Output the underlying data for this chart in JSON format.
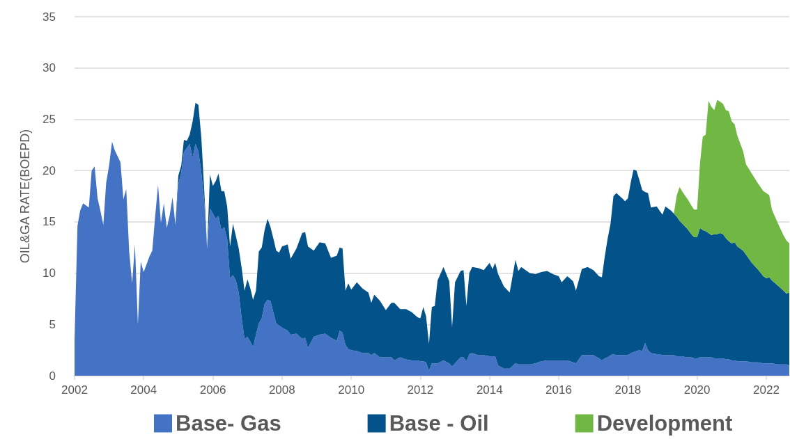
{
  "chart_data": {
    "type": "area",
    "stacked": true,
    "ylabel": "OIL&GA RATE(BOEPD)",
    "x": [
      "2002-01",
      "2002-02",
      "2002-03",
      "2002-04",
      "2002-06",
      "2002-07",
      "2002-08",
      "2002-09",
      "2002-10",
      "2002-11",
      "2002-12",
      "2003-01",
      "2003-02",
      "2003-03",
      "2003-05",
      "2003-06",
      "2003-07",
      "2003-08",
      "2003-09",
      "2003-10",
      "2003-11",
      "2003-12",
      "2004-01",
      "2004-03",
      "2004-04",
      "2004-05",
      "2004-06",
      "2004-07",
      "2004-08",
      "2004-09",
      "2004-10",
      "2004-11",
      "2004-12",
      "2005-01",
      "2005-02",
      "2005-03",
      "2005-04",
      "2005-05",
      "2005-06",
      "2005-07",
      "2005-08",
      "2005-09",
      "2005-10",
      "2005-11",
      "2005-12",
      "2006-01",
      "2006-02",
      "2006-03",
      "2006-04",
      "2006-05",
      "2006-06",
      "2006-07",
      "2006-08",
      "2006-09",
      "2006-10",
      "2006-11",
      "2006-12",
      "2007-01",
      "2007-02",
      "2007-03",
      "2007-04",
      "2007-05",
      "2007-06",
      "2007-07",
      "2007-08",
      "2007-09",
      "2007-10",
      "2007-11",
      "2007-12",
      "2008-01",
      "2008-03",
      "2008-04",
      "2008-06",
      "2008-08",
      "2008-09",
      "2008-10",
      "2008-12",
      "2009-02",
      "2009-04",
      "2009-06",
      "2009-08",
      "2009-09",
      "2009-10",
      "2009-11",
      "2009-12",
      "2010-01",
      "2010-03",
      "2010-05",
      "2010-07",
      "2010-08",
      "2010-09",
      "2010-11",
      "2011-01",
      "2011-03",
      "2011-04",
      "2011-06",
      "2011-08",
      "2011-10",
      "2011-12",
      "2012-01",
      "2012-02",
      "2012-03",
      "2012-04",
      "2012-05",
      "2012-06",
      "2012-07",
      "2012-09",
      "2012-11",
      "2012-12",
      "2013-01",
      "2013-03",
      "2013-04",
      "2013-05",
      "2013-06",
      "2013-07",
      "2013-09",
      "2013-11",
      "2014-01",
      "2014-02",
      "2014-03",
      "2014-04",
      "2014-06",
      "2014-08",
      "2014-10",
      "2014-11",
      "2014-12",
      "2015-03",
      "2015-05",
      "2015-07",
      "2015-09",
      "2015-11",
      "2016-01",
      "2016-02",
      "2016-04",
      "2016-06",
      "2016-07",
      "2016-09",
      "2016-11",
      "2017-01",
      "2017-03",
      "2017-04",
      "2017-05",
      "2017-06",
      "2017-07",
      "2017-08",
      "2017-09",
      "2017-11",
      "2017-12",
      "2018-01",
      "2018-02",
      "2018-03",
      "2018-04",
      "2018-05",
      "2018-06",
      "2018-07",
      "2018-08",
      "2018-09",
      "2018-11",
      "2018-12",
      "2019-01",
      "2019-02",
      "2019-04",
      "2019-05",
      "2019-06",
      "2019-07",
      "2019-08",
      "2019-09",
      "2019-10",
      "2019-11",
      "2019-12",
      "2020-01",
      "2020-02",
      "2020-03",
      "2020-04",
      "2020-05",
      "2020-06",
      "2020-07",
      "2020-08",
      "2020-09",
      "2020-10",
      "2020-11",
      "2020-12",
      "2021-01",
      "2021-02",
      "2021-03",
      "2021-05",
      "2021-06",
      "2021-08",
      "2021-10",
      "2021-12",
      "2022-01",
      "2022-02",
      "2022-03",
      "2022-05",
      "2022-07",
      "2022-08",
      "2022-09"
    ],
    "series": [
      {
        "name": "Base- Gas",
        "color": "#4472c4",
        "values": [
          3.5,
          14.6,
          16.1,
          16.8,
          16.4,
          20.0,
          20.4,
          17.3,
          16.1,
          14.7,
          18.8,
          20.5,
          22.8,
          22.0,
          20.8,
          17.2,
          18.2,
          12.1,
          9.0,
          12.8,
          5.0,
          11.1,
          10.1,
          11.6,
          12.2,
          15.5,
          18.6,
          14.9,
          16.8,
          14.4,
          15.6,
          17.4,
          14.7,
          18.7,
          19.8,
          21.8,
          22.2,
          22.6,
          21.3,
          22.6,
          21.9,
          19.8,
          17.1,
          12.4,
          16.3,
          15.8,
          15.3,
          15.6,
          14.2,
          14.5,
          13.3,
          9.5,
          9.8,
          9.3,
          8.1,
          5.6,
          3.6,
          3.8,
          3.3,
          2.8,
          4.0,
          5.1,
          5.6,
          7.0,
          7.4,
          7.3,
          6.2,
          5.1,
          4.9,
          4.7,
          4.4,
          4.0,
          4.1,
          3.6,
          3.7,
          2.7,
          3.8,
          4.0,
          4.1,
          3.7,
          3.4,
          4.4,
          4.2,
          3.0,
          2.6,
          2.5,
          2.4,
          2.2,
          2.2,
          2.0,
          2.2,
          1.8,
          1.8,
          1.8,
          1.5,
          1.8,
          1.6,
          1.5,
          1.5,
          1.4,
          1.4,
          1.3,
          0.5,
          1.2,
          1.2,
          1.2,
          1.5,
          1.2,
          0.9,
          1.2,
          1.8,
          1.8,
          1.4,
          2.1,
          2.2,
          2.0,
          2.0,
          1.9,
          1.9,
          1.9,
          1.0,
          0.7,
          0.7,
          1.2,
          1.1,
          1.1,
          1.1,
          1.2,
          1.4,
          1.5,
          1.5,
          1.5,
          1.5,
          1.5,
          1.3,
          1.2,
          2.0,
          2.0,
          2.0,
          1.7,
          1.5,
          1.7,
          1.8,
          2.0,
          2.1,
          2.0,
          2.0,
          2.0,
          2.0,
          2.2,
          2.3,
          2.4,
          2.5,
          2.4,
          3.2,
          2.5,
          2.2,
          2.1,
          2.1,
          2.0,
          2.0,
          2.0,
          2.0,
          1.9,
          1.9,
          1.9,
          1.8,
          1.8,
          1.8,
          1.7,
          1.7,
          1.8,
          1.8,
          1.8,
          1.8,
          1.8,
          1.7,
          1.7,
          1.7,
          1.7,
          1.6,
          1.6,
          1.5,
          1.5,
          1.4,
          1.4,
          1.4,
          1.3,
          1.3,
          1.2,
          1.2,
          1.2,
          1.2,
          1.1,
          1.1,
          1.1,
          1.0
        ]
      },
      {
        "name": "Base - Oil",
        "color": "#03528a",
        "values": [
          0,
          0,
          0,
          0,
          0,
          0,
          0,
          0,
          0,
          0,
          0,
          0,
          0,
          0,
          0,
          0,
          0,
          0,
          0,
          0,
          0,
          0,
          0,
          0,
          0,
          0,
          0,
          0,
          0,
          0,
          0,
          0,
          0,
          0.8,
          0.7,
          1.2,
          0.7,
          0.9,
          3.5,
          4.0,
          4.5,
          3.4,
          1.1,
          0,
          3.3,
          2.7,
          3.7,
          4.1,
          3.8,
          3.5,
          3.2,
          3.1,
          5.0,
          4.3,
          4.3,
          4.9,
          4.7,
          5.6,
          5.2,
          4.6,
          4.3,
          7.0,
          6.9,
          7.2,
          7.9,
          7.2,
          7.2,
          7.1,
          7.1,
          7.9,
          8.4,
          7.4,
          8.3,
          10.3,
          10.3,
          9.9,
          8.4,
          9.0,
          8.8,
          7.8,
          8.3,
          8.1,
          8.2,
          5.3,
          6.4,
          5.9,
          6.7,
          6.3,
          5.9,
          5.1,
          5.7,
          5.5,
          4.6,
          5.3,
          5.6,
          4.7,
          4.9,
          4.7,
          4.2,
          4.2,
          5.3,
          4.5,
          2.6,
          5.5,
          5.6,
          8.1,
          9.1,
          8.0,
          3.8,
          7.9,
          8.4,
          8.5,
          5.4,
          7.9,
          8.4,
          8.5,
          8.3,
          9.1,
          8.5,
          9.1,
          8.9,
          8.0,
          7.4,
          10.1,
          9.1,
          9.5,
          8.9,
          8.7,
          8.7,
          8.7,
          8.4,
          8.2,
          7.6,
          8.2,
          7.9,
          7.1,
          8.4,
          8.6,
          8.3,
          8.0,
          8.1,
          9.9,
          11.6,
          12.8,
          15.4,
          15.8,
          15.3,
          15.0,
          15.3,
          16.7,
          17.8,
          17.6,
          16.6,
          15.7,
          14.7,
          15.3,
          14.2,
          14.4,
          14.0,
          13.7,
          14.5,
          14.1,
          13.8,
          13.6,
          13.2,
          12.9,
          12.7,
          12.4,
          12.0,
          11.8,
          11.8,
          12.6,
          12.4,
          12.3,
          12.1,
          11.9,
          12.1,
          12.1,
          12.2,
          12.1,
          11.8,
          11.5,
          11.4,
          11.5,
          11.2,
          10.8,
          10.4,
          9.7,
          9.1,
          8.5,
          8.3,
          8.4,
          8.1,
          7.7,
          7.2,
          6.9,
          7.1
        ]
      },
      {
        "name": "Development",
        "color": "#70b843",
        "values": [
          null,
          null,
          null,
          null,
          null,
          null,
          null,
          null,
          null,
          null,
          null,
          null,
          null,
          null,
          null,
          null,
          null,
          null,
          null,
          null,
          null,
          null,
          null,
          null,
          null,
          null,
          null,
          null,
          null,
          null,
          null,
          null,
          null,
          null,
          null,
          null,
          null,
          null,
          null,
          null,
          null,
          null,
          null,
          null,
          null,
          null,
          null,
          null,
          null,
          null,
          null,
          null,
          null,
          null,
          null,
          null,
          null,
          null,
          null,
          null,
          null,
          null,
          null,
          null,
          null,
          null,
          null,
          null,
          null,
          null,
          null,
          null,
          null,
          null,
          null,
          null,
          null,
          null,
          null,
          null,
          null,
          null,
          null,
          null,
          null,
          null,
          null,
          null,
          null,
          null,
          null,
          null,
          null,
          null,
          null,
          null,
          null,
          null,
          null,
          null,
          null,
          null,
          null,
          null,
          null,
          null,
          null,
          null,
          null,
          null,
          null,
          null,
          null,
          null,
          null,
          null,
          null,
          null,
          null,
          null,
          null,
          null,
          null,
          null,
          null,
          null,
          null,
          null,
          null,
          null,
          null,
          null,
          null,
          null,
          null,
          null,
          null,
          null,
          null,
          null,
          null,
          null,
          null,
          null,
          null,
          null,
          null,
          null,
          null,
          null,
          null,
          null,
          null,
          null,
          null,
          null,
          null,
          null,
          null,
          null,
          null,
          null,
          0,
          2.1,
          3.3,
          3.1,
          3.0,
          2.9,
          2.8,
          2.7,
          2.7,
          6.3,
          9.1,
          9.4,
          12.9,
          12.5,
          12.1,
          13.1,
          12.8,
          12.7,
          12.5,
          12.7,
          11.9,
          11.5,
          10.8,
          9.7,
          8.8,
          8.7,
          8.4,
          8.3,
          8.3,
          8.0,
          6.9,
          6.1,
          5.4,
          5.2,
          4.8
        ]
      }
    ],
    "xlim": [
      "2002-01",
      "2022-09"
    ],
    "xticks": [
      "2002",
      "2004",
      "2006",
      "2008",
      "2010",
      "2012",
      "2014",
      "2016",
      "2018",
      "2020",
      "2022"
    ],
    "ylim": [
      0,
      35
    ],
    "yticks": [
      0,
      5,
      10,
      15,
      20,
      25,
      30,
      35
    ],
    "grid": "y",
    "legend": "bottom",
    "marker": "none"
  }
}
